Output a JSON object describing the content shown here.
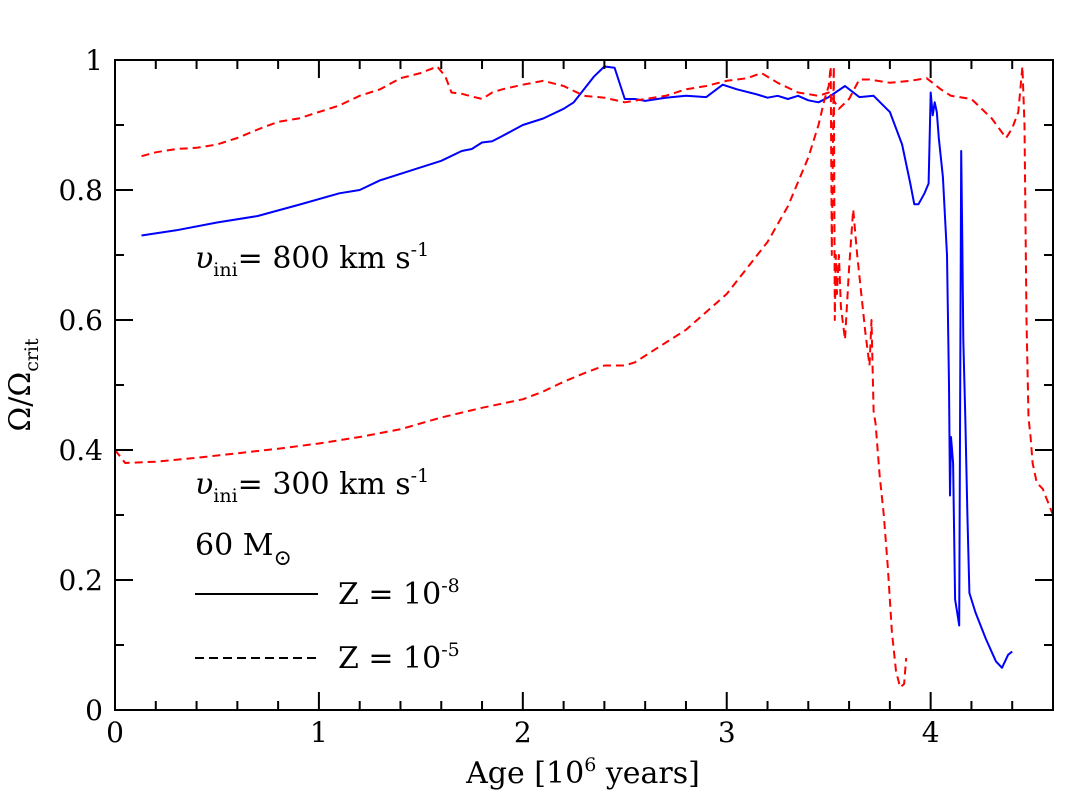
{
  "chart_data": {
    "type": "line",
    "xlabel": "Age [10",
    "xlabel_sup": "6",
    "xlabel_tail": " years]",
    "ylabel": "Ω/Ω",
    "ylabel_sub": "crit",
    "xlim": [
      0,
      4.6
    ],
    "ylim": [
      0,
      1
    ],
    "x_ticks": [
      "0",
      "1",
      "2",
      "3",
      "4"
    ],
    "x_tick_values": [
      0,
      1,
      2,
      3,
      4
    ],
    "y_ticks": [
      "0",
      "0.2",
      "0.4",
      "0.6",
      "0.8",
      "1"
    ],
    "y_tick_values": [
      0,
      0.2,
      0.4,
      0.6,
      0.8,
      1.0
    ],
    "annotations": {
      "v800_sym": "υ",
      "v800_sub": "ini",
      "v800_text": "= 800 km s",
      "v800_sup": "-1",
      "v300_sym": "υ",
      "v300_sub": "ini",
      "v300_text": "= 300 km s",
      "v300_sup": "-1",
      "mass_text": "60 M",
      "mass_sym": "⊙"
    },
    "legend": [
      {
        "text": "Z = 10",
        "sup": "-8",
        "style": "solid",
        "color": "#000000"
      },
      {
        "text": "Z = 10",
        "sup": "-5",
        "style": "dashed",
        "color": "#000000"
      }
    ],
    "series": [
      {
        "style": "solid",
        "color": "#0000ff",
        "points": [
          [
            0.13,
            0.73
          ],
          [
            0.3,
            0.738
          ],
          [
            0.5,
            0.75
          ],
          [
            0.7,
            0.76
          ],
          [
            0.9,
            0.777
          ],
          [
            1.1,
            0.795
          ],
          [
            1.2,
            0.8
          ],
          [
            1.3,
            0.815
          ],
          [
            1.5,
            0.835
          ],
          [
            1.6,
            0.845
          ],
          [
            1.7,
            0.86
          ],
          [
            1.75,
            0.863
          ],
          [
            1.8,
            0.873
          ],
          [
            1.85,
            0.875
          ],
          [
            1.9,
            0.883
          ],
          [
            2.0,
            0.9
          ],
          [
            2.1,
            0.91
          ],
          [
            2.2,
            0.925
          ],
          [
            2.25,
            0.935
          ],
          [
            2.3,
            0.955
          ],
          [
            2.35,
            0.975
          ],
          [
            2.4,
            0.99
          ],
          [
            2.45,
            0.988
          ],
          [
            2.5,
            0.94
          ],
          [
            2.55,
            0.94
          ],
          [
            2.6,
            0.937
          ],
          [
            2.7,
            0.942
          ],
          [
            2.8,
            0.945
          ],
          [
            2.9,
            0.943
          ],
          [
            2.98,
            0.962
          ],
          [
            3.05,
            0.955
          ],
          [
            3.15,
            0.947
          ],
          [
            3.2,
            0.942
          ],
          [
            3.25,
            0.945
          ],
          [
            3.3,
            0.94
          ],
          [
            3.35,
            0.945
          ],
          [
            3.4,
            0.938
          ],
          [
            3.45,
            0.935
          ],
          [
            3.5,
            0.943
          ],
          [
            3.58,
            0.96
          ],
          [
            3.65,
            0.943
          ],
          [
            3.72,
            0.945
          ],
          [
            3.8,
            0.92
          ],
          [
            3.86,
            0.87
          ],
          [
            3.9,
            0.81
          ],
          [
            3.92,
            0.778
          ],
          [
            3.94,
            0.778
          ],
          [
            3.97,
            0.795
          ],
          [
            3.99,
            0.81
          ],
          [
            4.0,
            0.95
          ],
          [
            4.01,
            0.915
          ],
          [
            4.02,
            0.935
          ],
          [
            4.03,
            0.92
          ],
          [
            4.04,
            0.88
          ],
          [
            4.06,
            0.82
          ],
          [
            4.08,
            0.7
          ],
          [
            4.09,
            0.5
          ],
          [
            4.095,
            0.33
          ],
          [
            4.1,
            0.42
          ],
          [
            4.11,
            0.38
          ],
          [
            4.12,
            0.17
          ],
          [
            4.13,
            0.15
          ],
          [
            4.14,
            0.13
          ],
          [
            4.15,
            0.86
          ],
          [
            4.155,
            0.72
          ],
          [
            4.16,
            0.57
          ],
          [
            4.17,
            0.45
          ],
          [
            4.18,
            0.3
          ],
          [
            4.19,
            0.18
          ],
          [
            4.22,
            0.15
          ],
          [
            4.27,
            0.11
          ],
          [
            4.32,
            0.075
          ],
          [
            4.35,
            0.065
          ],
          [
            4.38,
            0.085
          ],
          [
            4.4,
            0.09
          ]
        ]
      },
      {
        "style": "dashed",
        "color": "#ff0000",
        "points": [
          [
            0.13,
            0.852
          ],
          [
            0.2,
            0.858
          ],
          [
            0.3,
            0.863
          ],
          [
            0.4,
            0.865
          ],
          [
            0.5,
            0.87
          ],
          [
            0.6,
            0.88
          ],
          [
            0.7,
            0.893
          ],
          [
            0.8,
            0.905
          ],
          [
            0.9,
            0.91
          ],
          [
            1.0,
            0.92
          ],
          [
            1.1,
            0.93
          ],
          [
            1.2,
            0.945
          ],
          [
            1.3,
            0.955
          ],
          [
            1.4,
            0.972
          ],
          [
            1.5,
            0.98
          ],
          [
            1.58,
            0.99
          ],
          [
            1.62,
            0.975
          ],
          [
            1.65,
            0.95
          ],
          [
            1.7,
            0.948
          ],
          [
            1.8,
            0.94
          ],
          [
            1.85,
            0.95
          ],
          [
            1.9,
            0.955
          ],
          [
            2.0,
            0.962
          ],
          [
            2.1,
            0.968
          ],
          [
            2.2,
            0.96
          ],
          [
            2.3,
            0.945
          ],
          [
            2.4,
            0.942
          ],
          [
            2.5,
            0.935
          ],
          [
            2.6,
            0.94
          ],
          [
            2.7,
            0.945
          ],
          [
            2.8,
            0.955
          ],
          [
            2.9,
            0.96
          ],
          [
            3.0,
            0.968
          ],
          [
            3.1,
            0.972
          ],
          [
            3.17,
            0.98
          ],
          [
            3.25,
            0.965
          ],
          [
            3.35,
            0.95
          ],
          [
            3.45,
            0.945
          ],
          [
            3.5,
            0.95
          ],
          [
            3.55,
            0.925
          ],
          [
            3.6,
            0.94
          ],
          [
            3.65,
            0.97
          ],
          [
            3.7,
            0.97
          ],
          [
            3.8,
            0.965
          ],
          [
            3.9,
            0.968
          ],
          [
            3.98,
            0.972
          ],
          [
            4.05,
            0.955
          ],
          [
            4.1,
            0.945
          ],
          [
            4.2,
            0.94
          ],
          [
            4.3,
            0.91
          ],
          [
            4.37,
            0.88
          ],
          [
            4.4,
            0.895
          ],
          [
            4.43,
            0.92
          ],
          [
            4.45,
            0.99
          ],
          [
            4.46,
            0.9
          ],
          [
            4.47,
            0.6
          ],
          [
            4.48,
            0.45
          ],
          [
            4.49,
            0.42
          ],
          [
            4.5,
            0.38
          ],
          [
            4.52,
            0.35
          ],
          [
            4.55,
            0.34
          ],
          [
            4.6,
            0.3
          ]
        ]
      },
      {
        "style": "dashed",
        "color": "#ff0000",
        "points": [
          [
            0.0,
            0.4
          ],
          [
            0.05,
            0.38
          ],
          [
            0.2,
            0.382
          ],
          [
            0.4,
            0.388
          ],
          [
            0.6,
            0.395
          ],
          [
            0.8,
            0.402
          ],
          [
            1.0,
            0.41
          ],
          [
            1.2,
            0.42
          ],
          [
            1.4,
            0.432
          ],
          [
            1.6,
            0.45
          ],
          [
            1.8,
            0.465
          ],
          [
            2.0,
            0.478
          ],
          [
            2.1,
            0.49
          ],
          [
            2.2,
            0.505
          ],
          [
            2.3,
            0.518
          ],
          [
            2.4,
            0.53
          ],
          [
            2.5,
            0.53
          ],
          [
            2.55,
            0.535
          ],
          [
            2.65,
            0.555
          ],
          [
            2.8,
            0.585
          ],
          [
            3.0,
            0.64
          ],
          [
            3.1,
            0.68
          ],
          [
            3.2,
            0.72
          ],
          [
            3.3,
            0.775
          ],
          [
            3.4,
            0.85
          ],
          [
            3.45,
            0.9
          ],
          [
            3.48,
            0.94
          ],
          [
            3.5,
            0.96
          ],
          [
            3.51,
            0.99
          ],
          [
            3.515,
            0.7
          ],
          [
            3.52,
            0.85
          ],
          [
            3.525,
            0.99
          ],
          [
            3.53,
            0.6
          ],
          [
            3.535,
            0.7
          ],
          [
            3.54,
            0.64
          ],
          [
            3.55,
            0.7
          ],
          [
            3.56,
            0.62
          ],
          [
            3.58,
            0.57
          ],
          [
            3.6,
            0.68
          ],
          [
            3.62,
            0.77
          ],
          [
            3.64,
            0.7
          ],
          [
            3.66,
            0.64
          ],
          [
            3.68,
            0.58
          ],
          [
            3.7,
            0.53
          ],
          [
            3.71,
            0.6
          ],
          [
            3.72,
            0.46
          ],
          [
            3.73,
            0.44
          ],
          [
            3.75,
            0.36
          ],
          [
            3.77,
            0.3
          ],
          [
            3.79,
            0.22
          ],
          [
            3.81,
            0.12
          ],
          [
            3.83,
            0.06
          ],
          [
            3.85,
            0.035
          ],
          [
            3.87,
            0.04
          ],
          [
            3.88,
            0.08
          ]
        ]
      }
    ]
  }
}
